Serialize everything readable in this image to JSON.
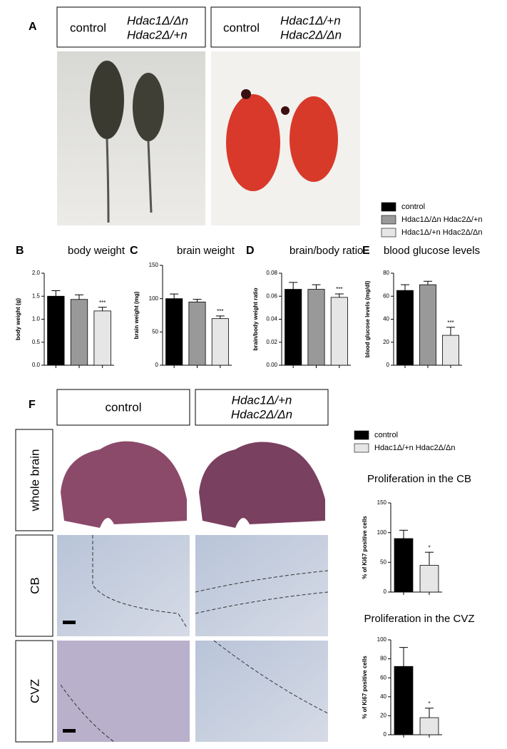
{
  "panels": {
    "a": {
      "letter": "A",
      "left": [
        "control",
        "Hdac1Δ/Δn",
        "Hdac2Δ/+n"
      ],
      "right": [
        "control",
        "Hdac1Δ/+n",
        "Hdac2Δ/Δn"
      ]
    },
    "b": {
      "letter": "B"
    },
    "c": {
      "letter": "C"
    },
    "d": {
      "letter": "D"
    },
    "e": {
      "letter": "E"
    },
    "f": {
      "letter": "F",
      "left": [
        "control"
      ],
      "right": [
        "Hdac1Δ/+n",
        "Hdac2Δ/Δn"
      ],
      "rows": [
        "whole brain",
        "CB",
        "CVZ"
      ]
    }
  },
  "legend_top": [
    {
      "name": "control",
      "color": "#000000"
    },
    {
      "name": "Hdac1Δ/Δn Hdac2Δ/+n",
      "color": "#999999"
    },
    {
      "name": "Hdac1Δ/+n Hdac2Δ/Δn",
      "color": "#e6e6e6"
    }
  ],
  "legend_bottom": [
    {
      "name": "control",
      "color": "#000000"
    },
    {
      "name": "Hdac1Δ/+n Hdac2Δ/Δn",
      "color": "#e6e6e6"
    }
  ],
  "chart_data": [
    {
      "type": "bar",
      "title": "body weight",
      "y_label": "body weight (g)",
      "categories": [
        null,
        null,
        null
      ],
      "values": [
        1.5,
        1.43,
        1.18
      ],
      "errors": [
        0.12,
        0.1,
        0.08
      ],
      "colors": [
        "#000000",
        "#999999",
        "#e6e6e6"
      ],
      "annotations": [
        null,
        null,
        "***"
      ],
      "ylim": [
        0,
        2
      ],
      "yticks": [
        {
          "value": 0,
          "label": "0.0"
        },
        {
          "value": 0.5,
          "label": "0.5"
        },
        {
          "value": 1,
          "label": "1.0"
        },
        {
          "value": 1.5,
          "label": "1.5"
        },
        {
          "value": 2,
          "label": "2.0"
        }
      ]
    },
    {
      "type": "bar",
      "title": "brain weight",
      "y_label": "brain weight (mg)",
      "categories": [
        null,
        null,
        null
      ],
      "values": [
        100,
        95,
        70
      ],
      "errors": [
        7,
        4,
        4
      ],
      "colors": [
        "#000000",
        "#999999",
        "#e6e6e6"
      ],
      "annotations": [
        null,
        null,
        "***"
      ],
      "ylim": [
        0,
        150
      ],
      "yticks": [
        0,
        50,
        100,
        150
      ]
    },
    {
      "type": "bar",
      "title": "brain/body ratio",
      "y_label": "brain/body weight ratio",
      "categories": [
        null,
        null,
        null
      ],
      "values": [
        0.066,
        0.066,
        0.059
      ],
      "errors": [
        0.006,
        0.004,
        0.003
      ],
      "colors": [
        "#000000",
        "#999999",
        "#e6e6e6"
      ],
      "annotations": [
        null,
        null,
        "***"
      ],
      "ylim": [
        0,
        0.08
      ],
      "yticks": [
        {
          "value": 0,
          "label": "0.00"
        },
        {
          "value": 0.02,
          "label": "0.02"
        },
        {
          "value": 0.04,
          "label": "0.04"
        },
        {
          "value": 0.06,
          "label": "0.06"
        },
        {
          "value": 0.08,
          "label": "0.08"
        }
      ]
    },
    {
      "type": "bar",
      "title": "blood glucose levels",
      "y_label": "blood glucose levels (mg/dl)",
      "categories": [
        null,
        null,
        null
      ],
      "values": [
        65,
        70,
        26
      ],
      "errors": [
        5,
        3,
        7
      ],
      "colors": [
        "#000000",
        "#999999",
        "#e6e6e6"
      ],
      "annotations": [
        null,
        null,
        "***"
      ],
      "ylim": [
        0,
        80
      ],
      "yticks": [
        0,
        20,
        40,
        60,
        80
      ]
    },
    {
      "type": "bar",
      "title": "Proliferation in the CB",
      "y_label": "% of Ki67 positive cells",
      "categories": [
        null,
        null
      ],
      "values": [
        90,
        45
      ],
      "errors": [
        14,
        22
      ],
      "colors": [
        "#000000",
        "#e6e6e6"
      ],
      "annotations": [
        null,
        "*"
      ],
      "ylim": [
        0,
        150
      ],
      "yticks": [
        0,
        50,
        100,
        150
      ]
    },
    {
      "type": "bar",
      "title": "Proliferation in the CVZ",
      "y_label": "% of Ki67 positive cells",
      "categories": [
        null,
        null
      ],
      "values": [
        72,
        18
      ],
      "errors": [
        20,
        10
      ],
      "colors": [
        "#000000",
        "#e6e6e6"
      ],
      "annotations": [
        null,
        "*"
      ],
      "ylim": [
        0,
        100
      ],
      "yticks": [
        0,
        20,
        40,
        60,
        80,
        100
      ]
    }
  ]
}
